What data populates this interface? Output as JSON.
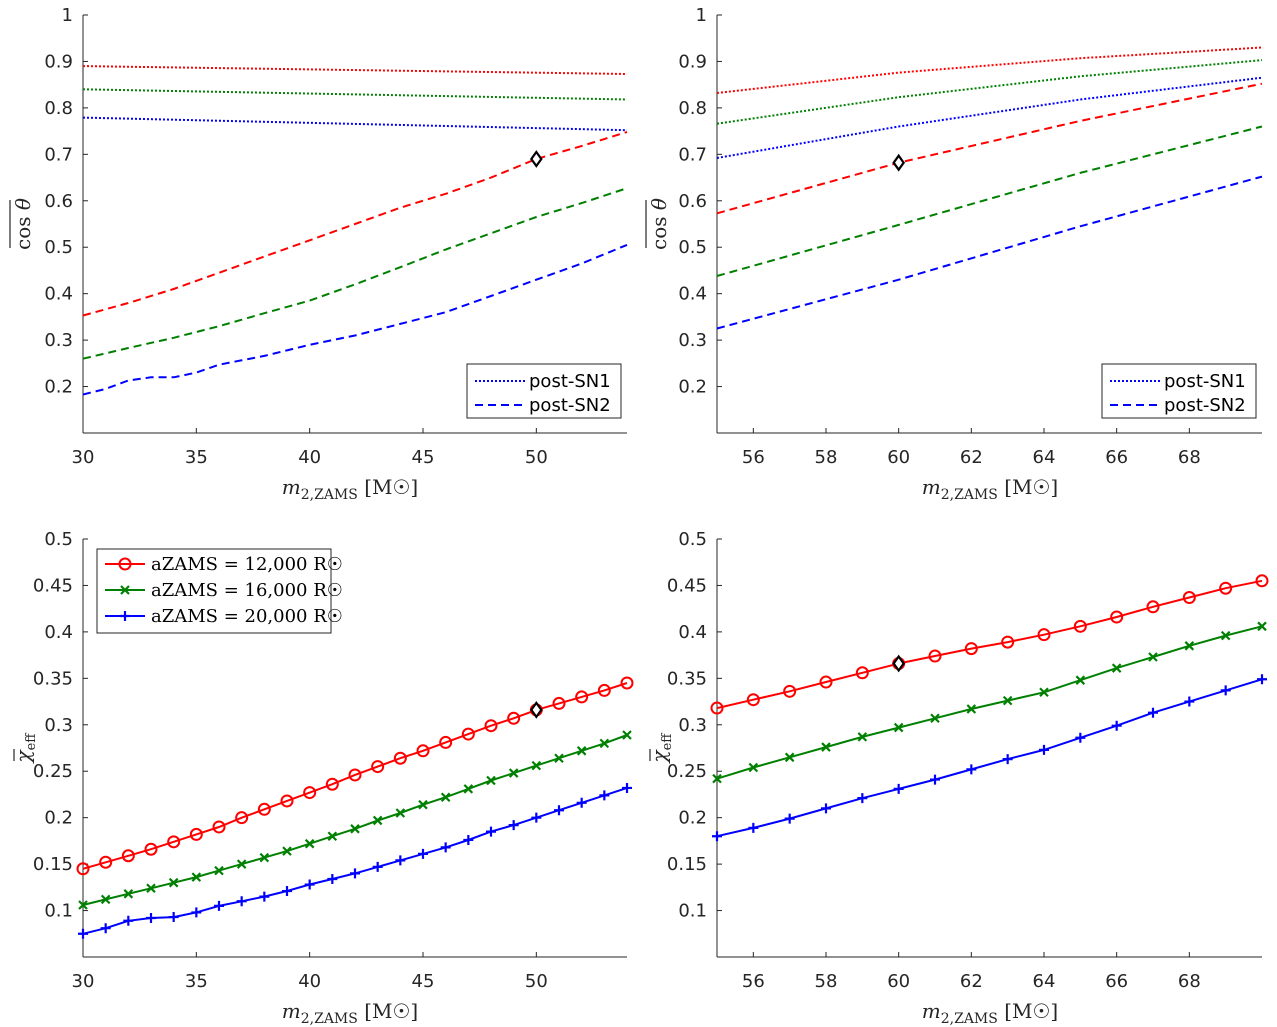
{
  "chart_data": [
    {
      "type": "line",
      "ylabel": "cos θ (overlined)",
      "xlabel": "m2,ZAMS [M☉]",
      "xlim": [
        30,
        54
      ],
      "ylim": [
        0.1,
        1
      ],
      "xticks": [
        "30",
        "35",
        "40",
        "45",
        "50"
      ],
      "yticks": [
        "0.2",
        "0.3",
        "0.4",
        "0.5",
        "0.6",
        "0.7",
        "0.8",
        "0.9",
        "1"
      ],
      "legend": {
        "position": "bottom-right",
        "entries": [
          "post-SN1",
          "post-SN2"
        ]
      },
      "marker": {
        "x": 50,
        "y": 0.69
      },
      "series": [
        {
          "color": "#ff0000",
          "style": "dotted",
          "x": [
            30,
            54
          ],
          "y": [
            0.89,
            0.873
          ]
        },
        {
          "color": "#008000",
          "style": "dotted",
          "x": [
            30,
            54
          ],
          "y": [
            0.84,
            0.818
          ]
        },
        {
          "color": "#0000ff",
          "style": "dotted",
          "x": [
            30,
            54
          ],
          "y": [
            0.779,
            0.752
          ]
        },
        {
          "color": "#ff0000",
          "style": "dashed",
          "x": [
            30,
            32,
            34,
            36,
            38,
            40,
            42,
            44,
            46,
            48,
            50,
            52,
            54
          ],
          "y": [
            0.353,
            0.38,
            0.41,
            0.445,
            0.48,
            0.515,
            0.55,
            0.585,
            0.615,
            0.65,
            0.69,
            0.718,
            0.748
          ]
        },
        {
          "color": "#008000",
          "style": "dashed",
          "x": [
            30,
            32,
            34,
            36,
            38,
            40,
            42,
            44,
            46,
            48,
            50,
            52,
            54
          ],
          "y": [
            0.26,
            0.283,
            0.305,
            0.33,
            0.358,
            0.385,
            0.42,
            0.457,
            0.495,
            0.53,
            0.565,
            0.595,
            0.627
          ]
        },
        {
          "color": "#0000ff",
          "style": "dashed",
          "x": [
            30,
            31,
            32,
            33,
            34,
            35,
            36,
            38,
            40,
            42,
            44,
            46,
            48,
            50,
            52,
            54
          ],
          "y": [
            0.183,
            0.195,
            0.213,
            0.22,
            0.22,
            0.23,
            0.247,
            0.266,
            0.29,
            0.31,
            0.335,
            0.36,
            0.395,
            0.43,
            0.465,
            0.505
          ]
        }
      ]
    },
    {
      "type": "line",
      "ylabel": "cos θ (overlined)",
      "xlabel": "m2,ZAMS [M☉]",
      "xlim": [
        55,
        70
      ],
      "ylim": [
        0.1,
        1
      ],
      "xticks": [
        "56",
        "58",
        "60",
        "62",
        "64",
        "66",
        "68"
      ],
      "yticks": [
        "0.2",
        "0.3",
        "0.4",
        "0.5",
        "0.6",
        "0.7",
        "0.8",
        "0.9",
        "1"
      ],
      "legend": {
        "position": "bottom-right",
        "entries": [
          "post-SN1",
          "post-SN2"
        ]
      },
      "marker": {
        "x": 60,
        "y": 0.682
      },
      "series": [
        {
          "color": "#ff0000",
          "style": "dotted",
          "x": [
            55,
            60,
            65,
            70
          ],
          "y": [
            0.832,
            0.876,
            0.907,
            0.93
          ]
        },
        {
          "color": "#008000",
          "style": "dotted",
          "x": [
            55,
            60,
            65,
            70
          ],
          "y": [
            0.766,
            0.823,
            0.868,
            0.903
          ]
        },
        {
          "color": "#0000ff",
          "style": "dotted",
          "x": [
            55,
            60,
            65,
            70
          ],
          "y": [
            0.692,
            0.76,
            0.818,
            0.865
          ]
        },
        {
          "color": "#ff0000",
          "style": "dashed",
          "x": [
            55,
            60,
            65,
            70
          ],
          "y": [
            0.573,
            0.682,
            0.772,
            0.852
          ]
        },
        {
          "color": "#008000",
          "style": "dashed",
          "x": [
            55,
            60,
            65,
            70
          ],
          "y": [
            0.438,
            0.548,
            0.66,
            0.76
          ]
        },
        {
          "color": "#0000ff",
          "style": "dashed",
          "x": [
            55,
            60,
            65,
            70
          ],
          "y": [
            0.325,
            0.43,
            0.545,
            0.652
          ]
        }
      ]
    },
    {
      "type": "line",
      "ylabel": "χeff (overlined)",
      "xlabel": "m2,ZAMS [M☉]",
      "xlim": [
        30,
        54
      ],
      "ylim": [
        0.05,
        0.5
      ],
      "xticks": [
        "30",
        "35",
        "40",
        "45",
        "50"
      ],
      "yticks": [
        "0.1",
        "0.15",
        "0.2",
        "0.25",
        "0.3",
        "0.35",
        "0.4",
        "0.45",
        "0.5"
      ],
      "legend": {
        "position": "top-left",
        "entries": [
          "aZAMS = 12,000 R☉",
          "aZAMS = 16,000 R☉",
          "aZAMS = 20,000 R☉"
        ]
      },
      "marker": {
        "x": 50,
        "y": 0.316
      },
      "series": [
        {
          "name": "aZAMS = 12,000 R☉",
          "color": "#ff0000",
          "marker": "circle",
          "x": [
            30,
            31,
            32,
            33,
            34,
            35,
            36,
            37,
            38,
            39,
            40,
            41,
            42,
            43,
            44,
            45,
            46,
            47,
            48,
            49,
            50,
            51,
            52,
            53,
            54
          ],
          "y": [
            0.145,
            0.152,
            0.159,
            0.166,
            0.174,
            0.182,
            0.19,
            0.2,
            0.209,
            0.218,
            0.227,
            0.236,
            0.246,
            0.255,
            0.264,
            0.272,
            0.281,
            0.29,
            0.299,
            0.307,
            0.316,
            0.323,
            0.33,
            0.337,
            0.345
          ]
        },
        {
          "name": "aZAMS = 16,000 R☉",
          "color": "#008000",
          "marker": "x",
          "x": [
            30,
            31,
            32,
            33,
            34,
            35,
            36,
            37,
            38,
            39,
            40,
            41,
            42,
            43,
            44,
            45,
            46,
            47,
            48,
            49,
            50,
            51,
            52,
            53,
            54
          ],
          "y": [
            0.106,
            0.112,
            0.118,
            0.124,
            0.13,
            0.136,
            0.143,
            0.15,
            0.157,
            0.164,
            0.172,
            0.18,
            0.188,
            0.197,
            0.205,
            0.214,
            0.222,
            0.231,
            0.24,
            0.248,
            0.256,
            0.264,
            0.272,
            0.28,
            0.289
          ]
        },
        {
          "name": "aZAMS = 20,000 R☉",
          "color": "#0000ff",
          "marker": "plus",
          "x": [
            30,
            31,
            32,
            33,
            34,
            35,
            36,
            37,
            38,
            39,
            40,
            41,
            42,
            43,
            44,
            45,
            46,
            47,
            48,
            49,
            50,
            51,
            52,
            53,
            54
          ],
          "y": [
            0.075,
            0.081,
            0.089,
            0.092,
            0.093,
            0.098,
            0.105,
            0.11,
            0.115,
            0.121,
            0.128,
            0.134,
            0.14,
            0.147,
            0.154,
            0.161,
            0.168,
            0.176,
            0.185,
            0.192,
            0.2,
            0.208,
            0.216,
            0.224,
            0.232
          ]
        }
      ]
    },
    {
      "type": "line",
      "ylabel": "χeff (overlined)",
      "xlabel": "m2,ZAMS [M☉]",
      "xlim": [
        55,
        70
      ],
      "ylim": [
        0.05,
        0.5
      ],
      "xticks": [
        "56",
        "58",
        "60",
        "62",
        "64",
        "66",
        "68"
      ],
      "yticks": [
        "0.1",
        "0.15",
        "0.2",
        "0.25",
        "0.3",
        "0.35",
        "0.4",
        "0.45",
        "0.5"
      ],
      "marker": {
        "x": 60,
        "y": 0.366
      },
      "series": [
        {
          "name": "aZAMS = 12,000 R☉",
          "color": "#ff0000",
          "marker": "circle",
          "x": [
            55,
            56,
            57,
            58,
            59,
            60,
            61,
            62,
            63,
            64,
            65,
            66,
            67,
            68,
            69,
            70
          ],
          "y": [
            0.318,
            0.327,
            0.336,
            0.346,
            0.356,
            0.366,
            0.374,
            0.382,
            0.389,
            0.397,
            0.406,
            0.416,
            0.427,
            0.437,
            0.447,
            0.455
          ]
        },
        {
          "name": "aZAMS = 16,000 R☉",
          "color": "#008000",
          "marker": "x",
          "x": [
            55,
            56,
            57,
            58,
            59,
            60,
            61,
            62,
            63,
            64,
            65,
            66,
            67,
            68,
            69,
            70
          ],
          "y": [
            0.242,
            0.254,
            0.265,
            0.276,
            0.287,
            0.297,
            0.307,
            0.317,
            0.326,
            0.335,
            0.348,
            0.361,
            0.373,
            0.385,
            0.396,
            0.406
          ]
        },
        {
          "name": "aZAMS = 20,000 R☉",
          "color": "#0000ff",
          "marker": "plus",
          "x": [
            55,
            56,
            57,
            58,
            59,
            60,
            61,
            62,
            63,
            64,
            65,
            66,
            67,
            68,
            69,
            70
          ],
          "y": [
            0.18,
            0.189,
            0.199,
            0.21,
            0.221,
            0.231,
            0.241,
            0.252,
            0.263,
            0.273,
            0.286,
            0.299,
            0.313,
            0.325,
            0.337,
            0.349
          ]
        }
      ]
    }
  ]
}
